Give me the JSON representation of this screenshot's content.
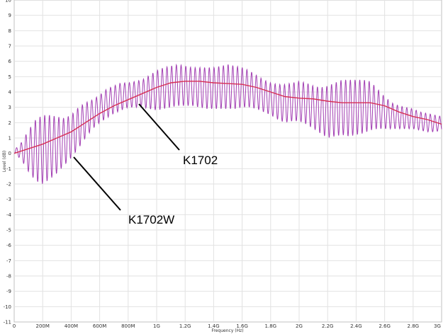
{
  "chart_data": {
    "type": "line",
    "title": "",
    "xlabel": "Frequency (Hz)",
    "ylabel": "Level (dB)",
    "xlim": [
      0,
      3000000000
    ],
    "ylim": [
      -11,
      10
    ],
    "grid": true,
    "x_ticks": [
      {
        "value": 0,
        "label": "0"
      },
      {
        "value": 200000000,
        "label": "200M"
      },
      {
        "value": 400000000,
        "label": "400M"
      },
      {
        "value": 600000000,
        "label": "600M"
      },
      {
        "value": 800000000,
        "label": "800M"
      },
      {
        "value": 1000000000,
        "label": "1G"
      },
      {
        "value": 1200000000,
        "label": "1.2G"
      },
      {
        "value": 1400000000,
        "label": "1.4G"
      },
      {
        "value": 1600000000,
        "label": "1.6G"
      },
      {
        "value": 1800000000,
        "label": "1.8G"
      },
      {
        "value": 2000000000,
        "label": "2G"
      },
      {
        "value": 2200000000,
        "label": "2.2G"
      },
      {
        "value": 2400000000,
        "label": "2.4G"
      },
      {
        "value": 2600000000,
        "label": "2.6G"
      },
      {
        "value": 2800000000,
        "label": "2.8G"
      },
      {
        "value": 3000000000,
        "label": "3G"
      }
    ],
    "y_ticks": [
      {
        "value": 10,
        "label": "10"
      },
      {
        "value": 9,
        "label": "9"
      },
      {
        "value": 8,
        "label": "8"
      },
      {
        "value": 7,
        "label": "7"
      },
      {
        "value": 6,
        "label": "6"
      },
      {
        "value": 5,
        "label": "5"
      },
      {
        "value": 4,
        "label": "4"
      },
      {
        "value": 3,
        "label": "3"
      },
      {
        "value": 2,
        "label": "2"
      },
      {
        "value": 1,
        "label": "1"
      },
      {
        "value": 0,
        "label": "0"
      },
      {
        "value": -1,
        "label": "-1"
      },
      {
        "value": -2,
        "label": "-2"
      },
      {
        "value": -3,
        "label": "-3"
      },
      {
        "value": -4,
        "label": "-4"
      },
      {
        "value": -5,
        "label": "-5"
      },
      {
        "value": -6,
        "label": "-6"
      },
      {
        "value": -7,
        "label": "-7"
      },
      {
        "value": -8,
        "label": "-8"
      },
      {
        "value": -9,
        "label": "-9"
      },
      {
        "value": -10,
        "label": "-10"
      },
      {
        "value": -11,
        "label": "-11"
      }
    ],
    "series": [
      {
        "name": "K1702",
        "color": "#d62f55",
        "x": [
          0,
          100000000,
          200000000,
          300000000,
          400000000,
          500000000,
          600000000,
          700000000,
          800000000,
          900000000,
          1000000000,
          1100000000,
          1200000000,
          1300000000,
          1400000000,
          1500000000,
          1600000000,
          1700000000,
          1800000000,
          1900000000,
          2000000000,
          2100000000,
          2200000000,
          2300000000,
          2400000000,
          2500000000,
          2600000000,
          2700000000,
          2800000000,
          2900000000,
          3000000000
        ],
        "values": [
          0,
          0.3,
          0.6,
          1.0,
          1.4,
          2.0,
          2.6,
          3.1,
          3.5,
          3.9,
          4.3,
          4.6,
          4.7,
          4.7,
          4.6,
          4.55,
          4.5,
          4.3,
          4.0,
          3.7,
          3.6,
          3.55,
          3.4,
          3.3,
          3.3,
          3.3,
          3.1,
          2.7,
          2.4,
          2.2,
          1.9
        ]
      },
      {
        "name": "K1702W",
        "color": "#a23fb3",
        "x": [
          0,
          50000000,
          100000000,
          150000000,
          200000000,
          250000000,
          300000000,
          350000000,
          400000000,
          450000000,
          500000000,
          550000000,
          600000000,
          650000000,
          700000000,
          750000000,
          800000000,
          850000000,
          900000000,
          950000000,
          1000000000,
          1050000000,
          1100000000,
          1150000000,
          1200000000,
          1250000000,
          1300000000,
          1350000000,
          1400000000,
          1450000000,
          1500000000,
          1550000000,
          1600000000,
          1650000000,
          1700000000,
          1750000000,
          1800000000,
          1850000000,
          1900000000,
          1950000000,
          2000000000,
          2050000000,
          2100000000,
          2150000000,
          2200000000,
          2250000000,
          2300000000,
          2350000000,
          2400000000,
          2450000000,
          2500000000,
          2550000000,
          2600000000,
          2650000000,
          2700000000,
          2750000000,
          2800000000,
          2850000000,
          2900000000,
          2950000000,
          3000000000
        ],
        "upper": [
          0.2,
          0.7,
          1.5,
          2.2,
          2.5,
          2.5,
          2.4,
          2.3,
          2.5,
          3.0,
          3.3,
          3.5,
          3.8,
          4.2,
          4.4,
          4.6,
          4.6,
          4.7,
          4.8,
          5.1,
          5.4,
          5.6,
          5.7,
          5.8,
          5.7,
          5.6,
          5.6,
          5.6,
          5.6,
          5.7,
          5.8,
          5.7,
          5.6,
          5.4,
          5.1,
          4.8,
          4.6,
          4.5,
          4.5,
          4.6,
          4.7,
          4.6,
          4.4,
          4.3,
          4.4,
          4.6,
          4.8,
          4.8,
          4.8,
          4.8,
          4.7,
          4.2,
          3.7,
          3.3,
          3.1,
          3.0,
          2.9,
          2.7,
          2.6,
          2.5,
          2.4
        ],
        "lower": [
          0.0,
          -0.4,
          -1.2,
          -1.8,
          -2.0,
          -1.7,
          -1.3,
          -0.8,
          -0.3,
          0.3,
          1.0,
          1.6,
          2.0,
          2.3,
          2.6,
          2.8,
          3.0,
          3.0,
          3.0,
          2.9,
          2.8,
          2.9,
          3.0,
          3.1,
          3.1,
          3.1,
          3.0,
          2.9,
          2.9,
          2.9,
          2.9,
          2.9,
          3.0,
          3.0,
          2.9,
          2.7,
          2.5,
          2.2,
          2.0,
          2.1,
          2.1,
          1.9,
          1.6,
          1.3,
          1.0,
          1.1,
          1.2,
          1.1,
          1.2,
          1.3,
          1.5,
          1.6,
          1.6,
          1.6,
          1.6,
          1.6,
          1.6,
          1.5,
          1.4,
          1.4,
          1.5
        ],
        "ripple_period": 33000000
      }
    ],
    "annotations": [
      {
        "text": "K1702",
        "series": "K1702"
      },
      {
        "text": "K1702W",
        "series": "K1702W"
      }
    ]
  }
}
